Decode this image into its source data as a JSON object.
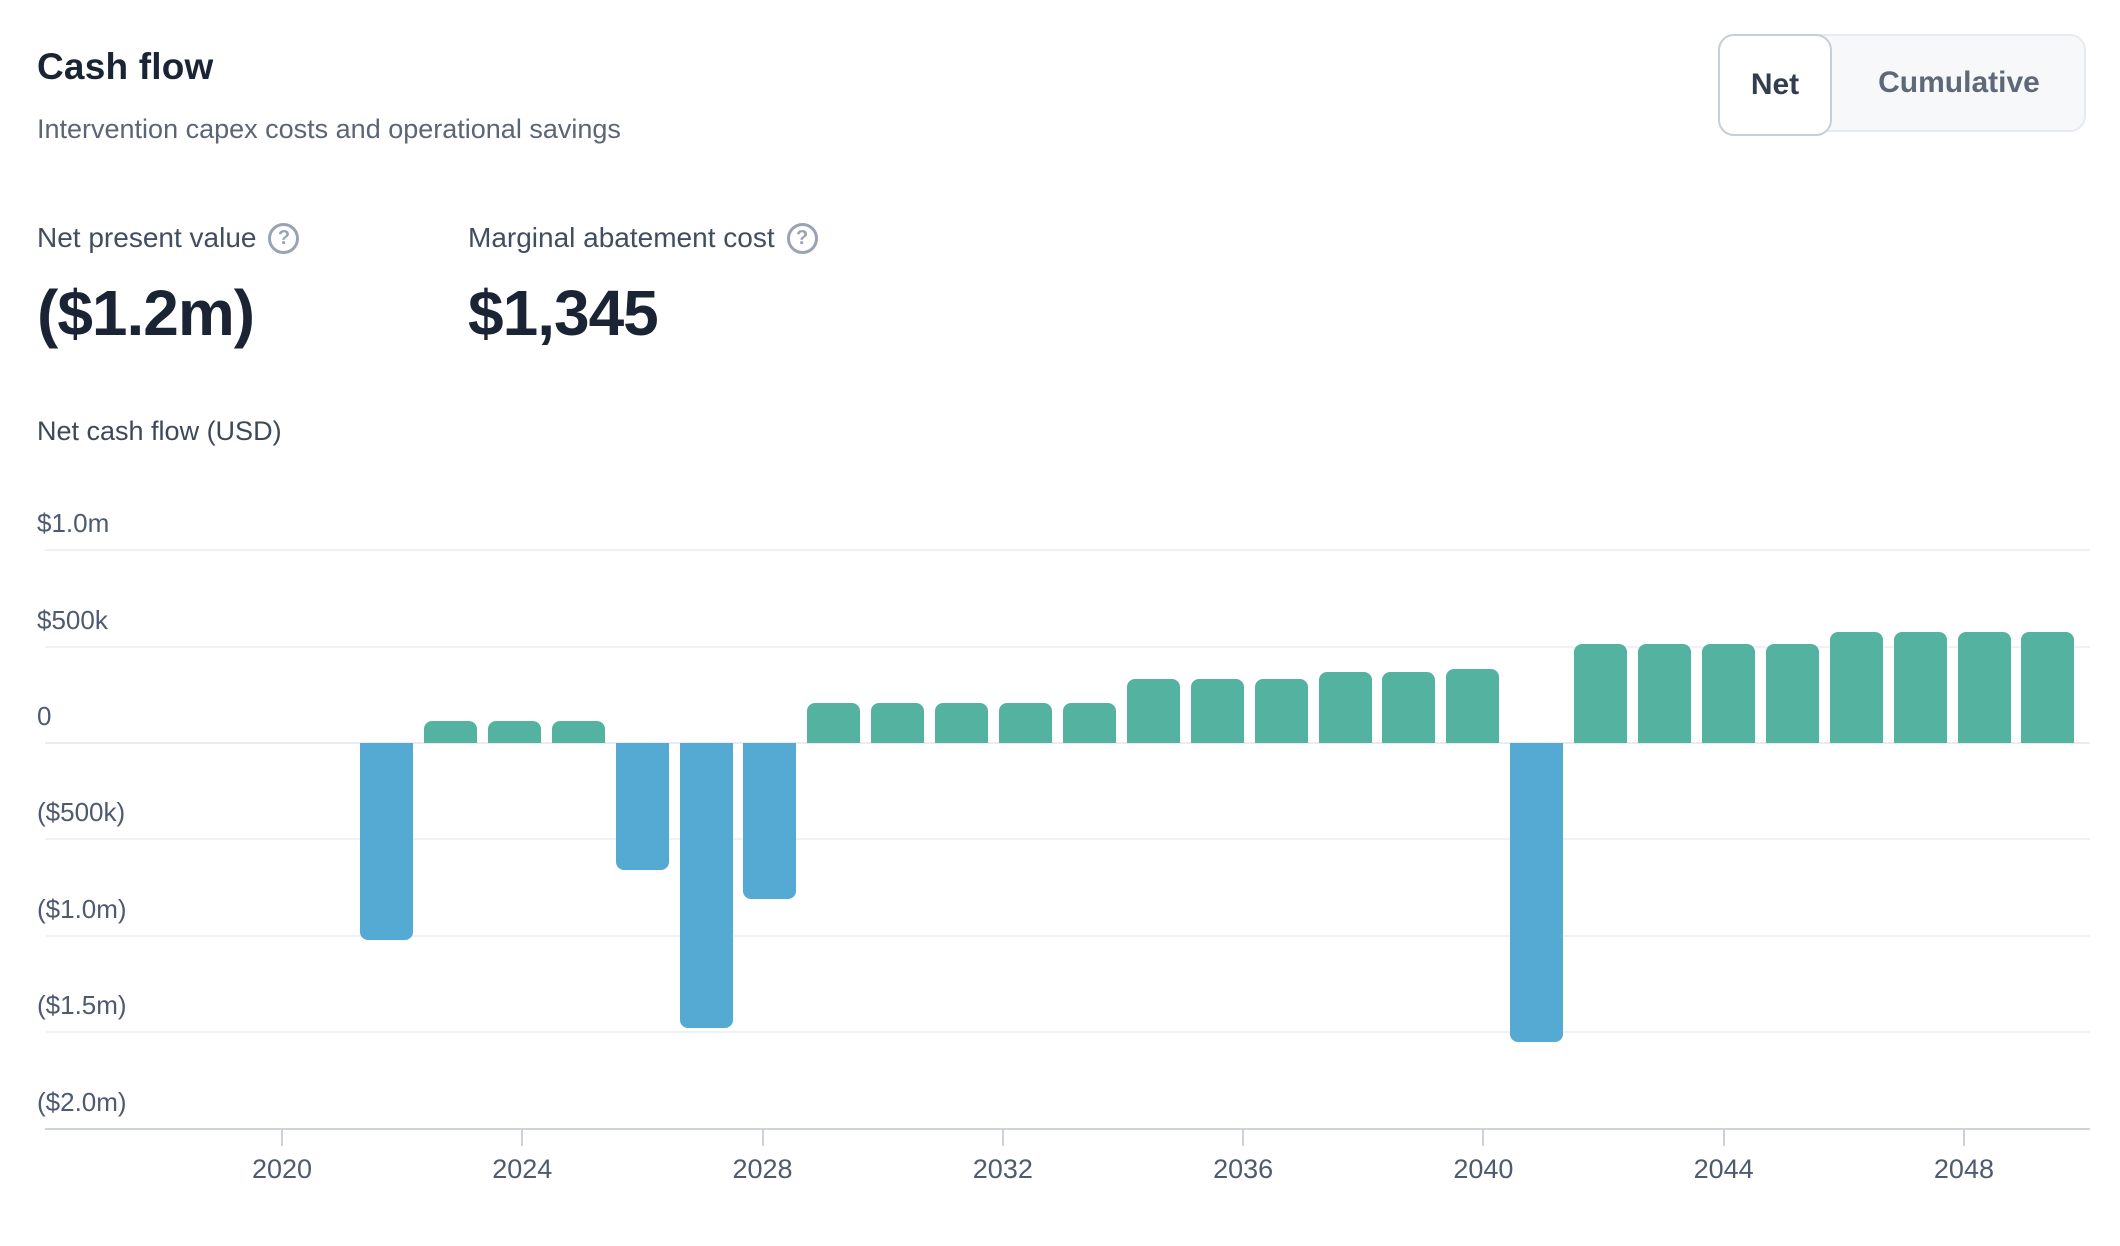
{
  "header": {
    "title": "Cash flow",
    "subtitle": "Intervention capex costs and operational savings"
  },
  "toggle": {
    "options": [
      "Net",
      "Cumulative"
    ],
    "selected": "Net"
  },
  "kpis": [
    {
      "label": "Net present value",
      "value": "($1.2m)",
      "icon": "question-mark-icon",
      "help_glyph": "?"
    },
    {
      "label": "Marginal abatement cost",
      "value": "$1,345",
      "icon": "question-mark-icon",
      "help_glyph": "?"
    }
  ],
  "chart_data": {
    "type": "bar",
    "title": "Net cash flow (USD)",
    "xlabel": "",
    "ylabel": "Net cash flow (USD)",
    "ylim": [
      -2000000,
      1000000
    ],
    "grid": true,
    "legend": "none",
    "x": [
      2022,
      2023,
      2024,
      2025,
      2026,
      2027,
      2028,
      2029,
      2030,
      2031,
      2032,
      2033,
      2034,
      2035,
      2036,
      2037,
      2038,
      2039,
      2040,
      2041,
      2042,
      2043,
      2044,
      2045,
      2046,
      2047,
      2048
    ],
    "values": [
      -1020000,
      115000,
      115000,
      115000,
      -660000,
      -1480000,
      -810000,
      210000,
      210000,
      210000,
      210000,
      210000,
      330000,
      330000,
      330000,
      370000,
      370000,
      385000,
      -1550000,
      515000,
      515000,
      515000,
      515000,
      575000,
      575000,
      575000,
      575000
    ],
    "colors": {
      "positive": "#53b3a0",
      "negative": "#54aad3"
    },
    "y_ticks": [
      {
        "label": "$1.0m",
        "value": 1000000
      },
      {
        "label": "$500k",
        "value": 500000
      },
      {
        "label": "0",
        "value": 0
      },
      {
        "label": "($500k)",
        "value": -500000
      },
      {
        "label": "($1.0m)",
        "value": -1000000
      },
      {
        "label": "($1.5m)",
        "value": -1500000
      },
      {
        "label": "($2.0m)",
        "value": -2000000
      }
    ],
    "x_ticks": [
      "2020",
      "2024",
      "2028",
      "2032",
      "2036",
      "2040",
      "2044",
      "2048"
    ]
  }
}
